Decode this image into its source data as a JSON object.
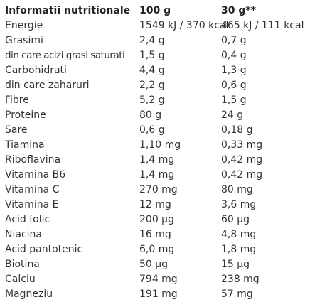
{
  "table": {
    "headers": [
      "Informatii nutritionale",
      "100 g",
      "30 g**"
    ],
    "rows": [
      {
        "name": "Energie",
        "per_100g": "1549 kJ / 370 kcal",
        "per_30g": "465 kJ / 111 kcal"
      },
      {
        "name": "Grasimi",
        "per_100g": "2,4 g",
        "per_30g": "0,7 g"
      },
      {
        "name": "din care acizi grasi saturati",
        "per_100g": "1,5 g",
        "per_30g": "0,4 g"
      },
      {
        "name": "Carbohidrati",
        "per_100g": "4,4 g",
        "per_30g": "1,3 g"
      },
      {
        "name": "din care zaharuri",
        "per_100g": "2,2 g",
        "per_30g": "0,6 g"
      },
      {
        "name": "Fibre",
        "per_100g": "5,2 g",
        "per_30g": "1,5 g"
      },
      {
        "name": "Proteine",
        "per_100g": "80 g",
        "per_30g": "24 g"
      },
      {
        "name": "Sare",
        "per_100g": "0,6 g",
        "per_30g": "0,18 g"
      },
      {
        "name": "Tiamina",
        "per_100g": "1,10 mg",
        "per_30g": "0,33 mg"
      },
      {
        "name": "Riboflavina",
        "per_100g": "1,4 mg",
        "per_30g": "0,42 mg"
      },
      {
        "name": "Vitamina B6",
        "per_100g": "1,4 mg",
        "per_30g": "0,42 mg"
      },
      {
        "name": "Vitamina C",
        "per_100g": "270 mg",
        "per_30g": "80 mg"
      },
      {
        "name": "Vitamina E",
        "per_100g": "12 mg",
        "per_30g": "3,6 mg"
      },
      {
        "name": "Acid folic",
        "per_100g": "200 µg",
        "per_30g": "60 µg"
      },
      {
        "name": "Niacina",
        "per_100g": "16 mg",
        "per_30g": "4,8 mg"
      },
      {
        "name": "Acid pantotenic",
        "per_100g": "6,0 mg",
        "per_30g": "1,8 mg"
      },
      {
        "name": "Biotina",
        "per_100g": "50 µg",
        "per_30g": "15 µg"
      },
      {
        "name": "Calciu",
        "per_100g": "794 mg",
        "per_30g": "238 mg"
      },
      {
        "name": "Magneziu",
        "per_100g": "191 mg",
        "per_30g": "57 mg"
      }
    ]
  }
}
